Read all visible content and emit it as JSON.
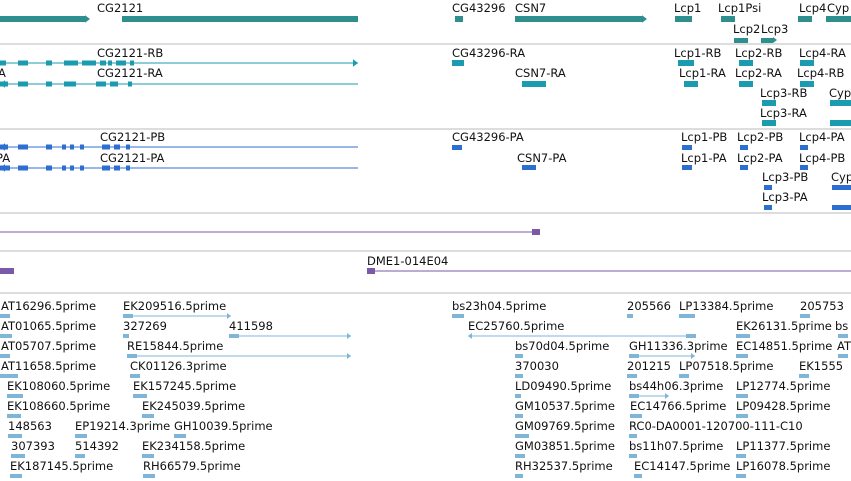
{
  "colors": {
    "gene": "#2f8f8f",
    "rna": "#1a9bb0",
    "protein": "#2c6fd1",
    "clone": "#7a5aa8",
    "est": "#7fb6d8",
    "divider": "#bbbbbb"
  },
  "tracks": {
    "genes": {
      "features": [
        {
          "name": "CG2121"
        },
        {
          "name": "CG43296"
        },
        {
          "name": "CSN7"
        },
        {
          "name": "Lcp1"
        },
        {
          "name": "Lcp1Psi"
        },
        {
          "name": "Lcp4"
        },
        {
          "name": "Cyp"
        },
        {
          "name": "Lcp2"
        },
        {
          "name": "Lcp3"
        }
      ]
    },
    "transcripts": {
      "features": [
        {
          "name": "CG2121-RB"
        },
        {
          "name": "CG2121-RA"
        },
        {
          "name": "CG43296-RA"
        },
        {
          "name": "CSN7-RA"
        },
        {
          "name": "Lcp1-RB"
        },
        {
          "name": "Lcp1-RA"
        },
        {
          "name": "Lcp2-RB"
        },
        {
          "name": "Lcp2-RA"
        },
        {
          "name": "Lcp4-RA"
        },
        {
          "name": "Lcp4-RB"
        },
        {
          "name": "Lcp3-RB"
        },
        {
          "name": "Lcp3-RA"
        },
        {
          "name": "Cyp"
        }
      ],
      "left_fragment": "A"
    },
    "proteins": {
      "features": [
        {
          "name": "CG2121-PB"
        },
        {
          "name": "CG2121-PA"
        },
        {
          "name": "CG43296-PA"
        },
        {
          "name": "CSN7-PA"
        },
        {
          "name": "Lcp1-PB"
        },
        {
          "name": "Lcp1-PA"
        },
        {
          "name": "Lcp2-PB"
        },
        {
          "name": "Lcp2-PA"
        },
        {
          "name": "Lcp4-PA"
        },
        {
          "name": "Lcp4-PB"
        },
        {
          "name": "Lcp3-PB"
        },
        {
          "name": "Lcp3-PA"
        },
        {
          "name": "Cyp"
        }
      ],
      "left_fragment": "PA"
    },
    "clones": {
      "features": [
        {
          "name": "DME1-014E04"
        }
      ]
    },
    "ests": {
      "features": [
        {
          "name": "AT16296.5prime"
        },
        {
          "name": "EK209516.5prime"
        },
        {
          "name": "bs23h04.5prime"
        },
        {
          "name": "205566"
        },
        {
          "name": "LP13384.5prime"
        },
        {
          "name": "205753"
        },
        {
          "name": "AT01065.5prime"
        },
        {
          "name": "327269"
        },
        {
          "name": "411598"
        },
        {
          "name": "EC25760.5prime"
        },
        {
          "name": "EK26131.5prime"
        },
        {
          "name": "bs"
        },
        {
          "name": "AT05707.5prime"
        },
        {
          "name": "RE15844.5prime"
        },
        {
          "name": "bs70d04.5prime"
        },
        {
          "name": "GH11336.3prime"
        },
        {
          "name": "EC14851.5prime"
        },
        {
          "name": "AT"
        },
        {
          "name": "AT11658.5prime"
        },
        {
          "name": "CK01126.3prime"
        },
        {
          "name": "370030"
        },
        {
          "name": "201215"
        },
        {
          "name": "LP07518.5prime"
        },
        {
          "name": "EK1555"
        },
        {
          "name": "EK108060.5prime"
        },
        {
          "name": "EK157245.5prime"
        },
        {
          "name": "LD09490.5prime"
        },
        {
          "name": "bs44h06.3prime"
        },
        {
          "name": "LP12774.5prime"
        },
        {
          "name": "EK108660.5prime"
        },
        {
          "name": "EK245039.5prime"
        },
        {
          "name": "GM10537.5prime"
        },
        {
          "name": "EC14766.5prime"
        },
        {
          "name": "LP09428.5prime"
        },
        {
          "name": "148563"
        },
        {
          "name": "EP19214.3prime"
        },
        {
          "name": "GH10039.5prime"
        },
        {
          "name": "GM09769.5prime"
        },
        {
          "name": "RC0-DA0001-120700-111-C10"
        },
        {
          "name": "307393"
        },
        {
          "name": "514392"
        },
        {
          "name": "EK234158.5prime"
        },
        {
          "name": "GM03851.5prime"
        },
        {
          "name": "bs11h07.5prime"
        },
        {
          "name": "LP11377.5prime"
        },
        {
          "name": "EK187145.5prime"
        },
        {
          "name": "RH66579.5prime"
        },
        {
          "name": "RH32537.5prime"
        },
        {
          "name": "EC14147.5prime"
        },
        {
          "name": "LP16078.5prime"
        }
      ]
    }
  }
}
